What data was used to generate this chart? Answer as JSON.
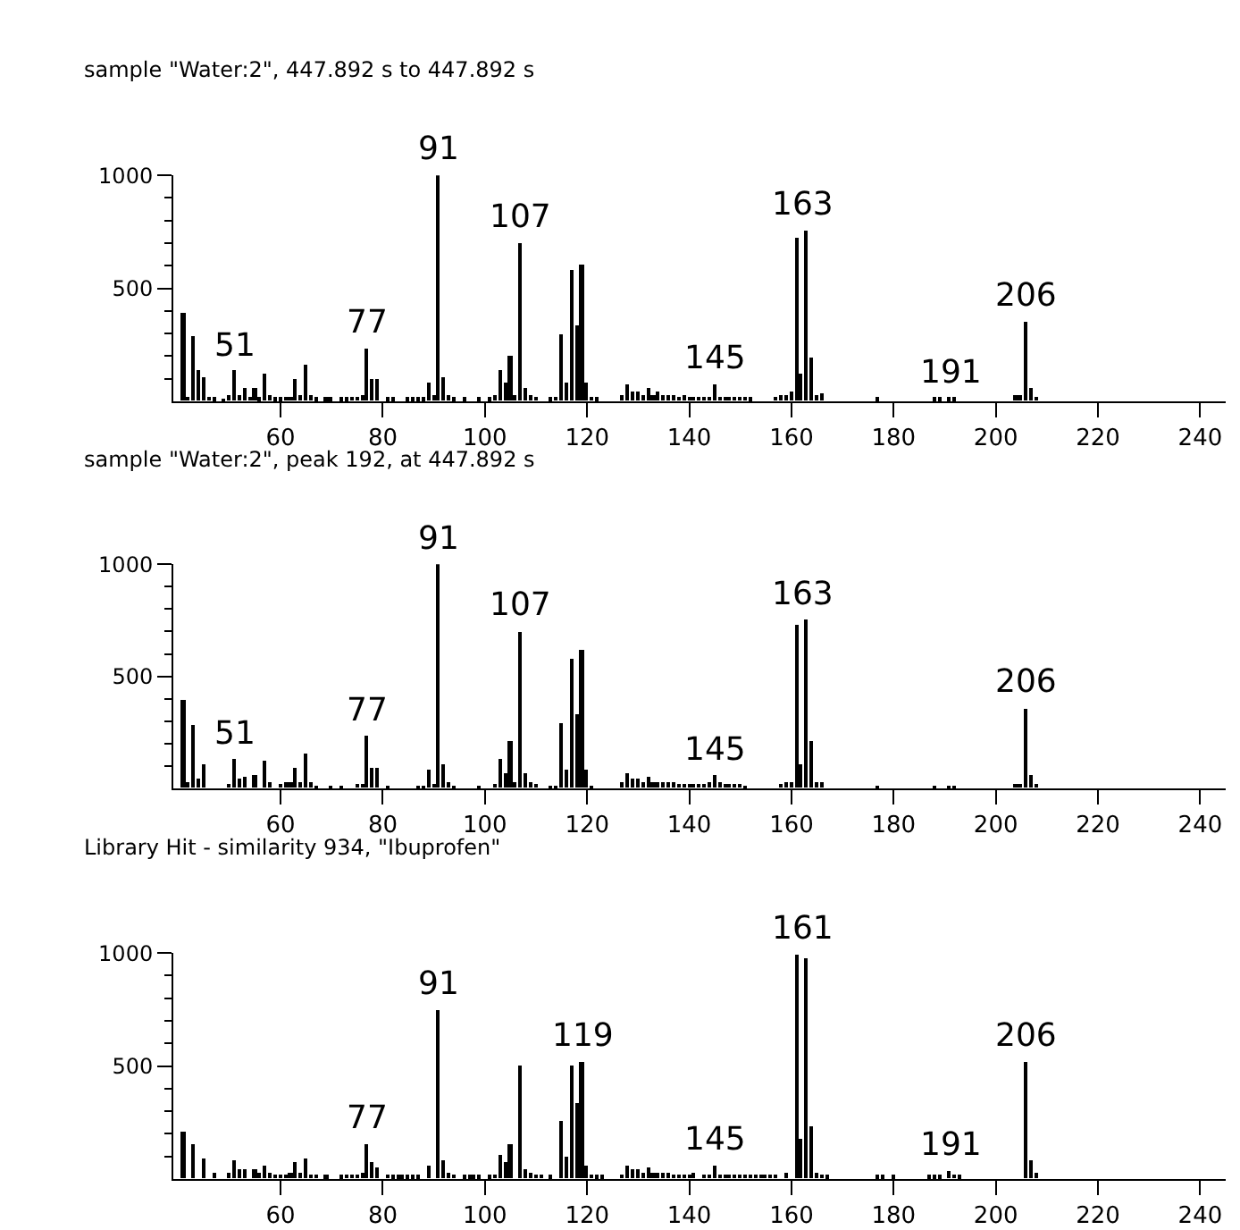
{
  "chart_data": [
    {
      "type": "bar",
      "title": "sample \"Water:2\", 447.892 s to 447.892 s",
      "xlim": [
        39,
        245
      ],
      "ylim": [
        0,
        1000
      ],
      "xticks": [
        60,
        80,
        100,
        120,
        140,
        160,
        180,
        200,
        220,
        240
      ],
      "yticks": [
        {
          "value": 100,
          "label": null
        },
        {
          "value": 200,
          "label": null
        },
        {
          "value": 300,
          "label": null
        },
        {
          "value": 400,
          "label": null
        },
        500,
        {
          "value": 600,
          "label": null
        },
        {
          "value": 700,
          "label": null
        },
        {
          "value": 800,
          "label": null
        },
        {
          "value": 900,
          "label": null
        },
        1000
      ],
      "series": [
        {
          "color": "#000000",
          "x": [
            41,
            42,
            43,
            44,
            45,
            46,
            47,
            49,
            50,
            51,
            52,
            53,
            54,
            55,
            56,
            57,
            58,
            59,
            60,
            61,
            62,
            63,
            64,
            65,
            66,
            67,
            69,
            70,
            72,
            73,
            74,
            75,
            76,
            77,
            78,
            79,
            81,
            82,
            85,
            86,
            87,
            88,
            89,
            90,
            91,
            92,
            93,
            94,
            96,
            99,
            101,
            102,
            103,
            104,
            105,
            106,
            107,
            108,
            109,
            110,
            113,
            114,
            115,
            116,
            117,
            118,
            119,
            120,
            121,
            122,
            127,
            128,
            129,
            130,
            131,
            132,
            133,
            134,
            135,
            136,
            137,
            138,
            139,
            140,
            141,
            142,
            143,
            144,
            145,
            146,
            147,
            148,
            149,
            150,
            151,
            152,
            157,
            158,
            159,
            160,
            161,
            162,
            163,
            164,
            165,
            166,
            177,
            188,
            189,
            191,
            192,
            204,
            205,
            206,
            207,
            208
          ],
          "values": [
            393,
            20,
            284,
            134,
            108,
            20,
            15,
            10,
            30,
            134,
            30,
            60,
            20,
            60,
            15,
            124,
            25,
            15,
            15,
            20,
            20,
            98,
            30,
            160,
            25,
            15,
            15,
            15,
            15,
            15,
            20,
            20,
            25,
            230,
            98,
            98,
            15,
            15,
            15,
            15,
            15,
            15,
            85,
            25,
            1000,
            106,
            25,
            15,
            15,
            15,
            15,
            30,
            134,
            85,
            199,
            25,
            703,
            60,
            25,
            20,
            15,
            20,
            292,
            85,
            581,
            333,
            602,
            85,
            20,
            15,
            30,
            72,
            45,
            40,
            25,
            60,
            25,
            40,
            30,
            25,
            25,
            20,
            25,
            20,
            20,
            20,
            20,
            20,
            72,
            20,
            20,
            20,
            20,
            20,
            20,
            15,
            20,
            30,
            30,
            40,
            726,
            121,
            752,
            194,
            25,
            34,
            15,
            15,
            15,
            15,
            15,
            25,
            25,
            354,
            60,
            20
          ]
        }
      ],
      "annotations": [
        {
          "text": "51",
          "x": 51,
          "y": 134
        },
        {
          "text": "77",
          "x": 77,
          "y": 230
        },
        {
          "text": "91",
          "x": 91,
          "y": 1000
        },
        {
          "text": "107",
          "x": 107,
          "y": 703
        },
        {
          "text": "145",
          "x": 145,
          "y": 72
        },
        {
          "text": "163",
          "x": 162,
          "y": 752
        },
        {
          "text": "191",
          "x": 191,
          "y": 15
        },
        {
          "text": "206",
          "x": 206,
          "y": 354
        }
      ]
    },
    {
      "type": "bar",
      "title": "sample \"Water:2\", peak 192, at 447.892 s",
      "xlim": [
        39,
        245
      ],
      "ylim": [
        0,
        1000
      ],
      "xticks": [
        60,
        80,
        100,
        120,
        140,
        160,
        180,
        200,
        220,
        240
      ],
      "yticks": [
        {
          "value": 100,
          "label": null
        },
        {
          "value": 200,
          "label": null
        },
        {
          "value": 300,
          "label": null
        },
        {
          "value": 400,
          "label": null
        },
        500,
        {
          "value": 600,
          "label": null
        },
        {
          "value": 700,
          "label": null
        },
        {
          "value": 800,
          "label": null
        },
        {
          "value": 900,
          "label": null
        },
        1000
      ],
      "series": [
        {
          "color": "#000000",
          "x": [
            41,
            42,
            43,
            44,
            45,
            50,
            51,
            52,
            53,
            55,
            57,
            58,
            60,
            61,
            62,
            63,
            64,
            65,
            66,
            67,
            70,
            72,
            75,
            76,
            77,
            78,
            79,
            81,
            87,
            88,
            89,
            90,
            91,
            92,
            93,
            94,
            99,
            102,
            103,
            104,
            105,
            106,
            107,
            108,
            109,
            110,
            113,
            114,
            115,
            116,
            117,
            118,
            119,
            120,
            121,
            127,
            128,
            129,
            130,
            131,
            132,
            133,
            134,
            135,
            136,
            137,
            138,
            139,
            140,
            141,
            142,
            143,
            144,
            145,
            146,
            147,
            148,
            149,
            150,
            151,
            158,
            159,
            160,
            161,
            162,
            163,
            164,
            165,
            166,
            177,
            188,
            191,
            192,
            204,
            205,
            206,
            207,
            208
          ],
          "values": [
            394,
            25,
            280,
            41,
            104,
            20,
            130,
            45,
            50,
            60,
            122,
            25,
            20,
            25,
            25,
            93,
            30,
            155,
            25,
            15,
            15,
            15,
            20,
            20,
            231,
            93,
            93,
            15,
            15,
            15,
            80,
            20,
            1000,
            106,
            25,
            15,
            15,
            20,
            130,
            67,
            210,
            30,
            700,
            67,
            25,
            20,
            15,
            15,
            293,
            80,
            580,
            332,
            617,
            80,
            15,
            25,
            65,
            45,
            40,
            30,
            50,
            30,
            25,
            25,
            25,
            25,
            20,
            20,
            20,
            20,
            20,
            20,
            25,
            57,
            25,
            20,
            20,
            20,
            20,
            15,
            20,
            30,
            25,
            728,
            106,
            751,
            210,
            25,
            31,
            15,
            15,
            15,
            15,
            20,
            20,
            355,
            60,
            18
          ]
        }
      ],
      "annotations": [
        {
          "text": "51",
          "x": 51,
          "y": 130
        },
        {
          "text": "77",
          "x": 77,
          "y": 231
        },
        {
          "text": "91",
          "x": 91,
          "y": 1000
        },
        {
          "text": "107",
          "x": 107,
          "y": 700
        },
        {
          "text": "145",
          "x": 145,
          "y": 57
        },
        {
          "text": "163",
          "x": 162,
          "y": 751
        },
        {
          "text": "206",
          "x": 206,
          "y": 355
        }
      ]
    },
    {
      "type": "bar",
      "title": "Library Hit - similarity 934, \"Ibuprofen\"",
      "xlim": [
        39,
        245
      ],
      "ylim": [
        0,
        1000
      ],
      "xticks": [
        60,
        80,
        100,
        120,
        140,
        160,
        180,
        200,
        220,
        240
      ],
      "yticks": [
        {
          "value": 100,
          "label": null
        },
        {
          "value": 200,
          "label": null
        },
        {
          "value": 300,
          "label": null
        },
        {
          "value": 400,
          "label": null
        },
        500,
        {
          "value": 600,
          "label": null
        },
        {
          "value": 700,
          "label": null
        },
        {
          "value": 800,
          "label": null
        },
        {
          "value": 900,
          "label": null
        },
        1000
      ],
      "series": [
        {
          "color": "#000000",
          "x": [
            41,
            43,
            45,
            47,
            50,
            51,
            52,
            53,
            55,
            56,
            57,
            58,
            59,
            60,
            61,
            62,
            63,
            64,
            65,
            66,
            67,
            69,
            72,
            73,
            74,
            75,
            76,
            77,
            78,
            79,
            81,
            82,
            83,
            84,
            85,
            86,
            87,
            89,
            91,
            92,
            93,
            94,
            96,
            97,
            98,
            99,
            101,
            102,
            103,
            104,
            105,
            107,
            108,
            109,
            110,
            111,
            113,
            115,
            116,
            117,
            118,
            119,
            120,
            121,
            122,
            123,
            127,
            128,
            129,
            130,
            131,
            132,
            133,
            134,
            135,
            136,
            137,
            138,
            139,
            140,
            141,
            143,
            144,
            145,
            146,
            147,
            148,
            149,
            150,
            151,
            152,
            153,
            154,
            155,
            156,
            157,
            159,
            161,
            162,
            163,
            164,
            165,
            166,
            167,
            177,
            178,
            180,
            187,
            188,
            189,
            191,
            192,
            193,
            206,
            207,
            208
          ],
          "values": [
            209,
            157,
            93,
            26,
            30,
            85,
            40,
            46,
            46,
            30,
            59,
            30,
            20,
            20,
            20,
            30,
            72,
            30,
            93,
            20,
            20,
            15,
            15,
            20,
            20,
            20,
            30,
            157,
            72,
            54,
            20,
            15,
            15,
            15,
            15,
            15,
            15,
            59,
            750,
            85,
            25,
            20,
            15,
            15,
            15,
            15,
            15,
            20,
            108,
            72,
            157,
            503,
            46,
            25,
            20,
            20,
            15,
            255,
            95,
            503,
            332,
            518,
            57,
            20,
            15,
            15,
            20,
            59,
            45,
            40,
            30,
            50,
            30,
            25,
            25,
            25,
            20,
            20,
            20,
            20,
            25,
            20,
            20,
            59,
            20,
            20,
            20,
            20,
            20,
            20,
            20,
            20,
            20,
            20,
            20,
            20,
            30,
            995,
            180,
            974,
            232,
            28,
            20,
            15,
            15,
            15,
            15,
            15,
            15,
            15,
            33,
            20,
            15,
            518,
            85,
            26
          ]
        }
      ],
      "annotations": [
        {
          "text": "77",
          "x": 77,
          "y": 157
        },
        {
          "text": "91",
          "x": 91,
          "y": 750
        },
        {
          "text": "119",
          "x": 119,
          "y": 518
        },
        {
          "text": "145",
          "x": 145,
          "y": 59
        },
        {
          "text": "161",
          "x": 162,
          "y": 995
        },
        {
          "text": "191",
          "x": 191,
          "y": 33
        },
        {
          "text": "206",
          "x": 206,
          "y": 518
        }
      ]
    }
  ]
}
